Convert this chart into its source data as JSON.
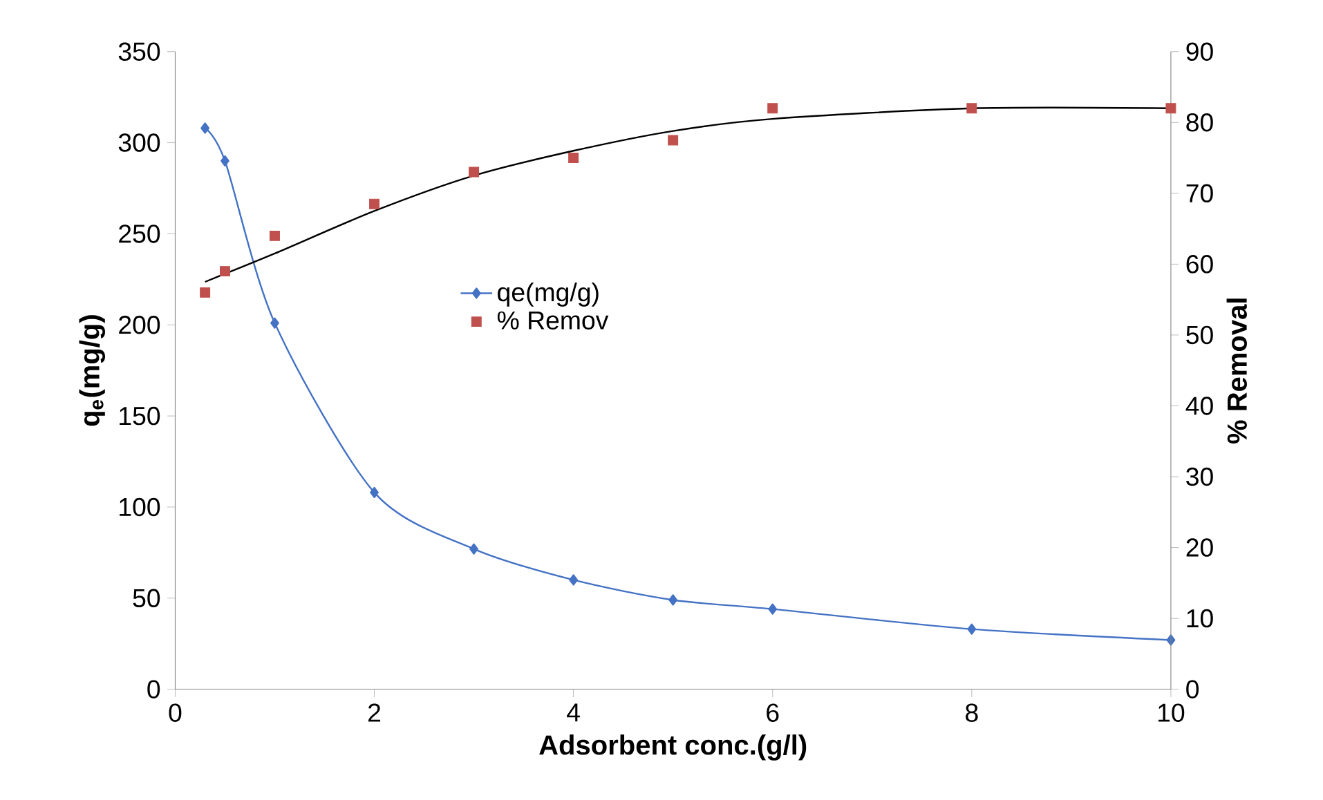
{
  "chart_data": {
    "type": "line",
    "xlabel": "Adsorbent conc.(g/l)",
    "ylabel": "q$_{e}$(mg/g)",
    "y2label": "% Removal",
    "xlim": [
      0,
      10
    ],
    "xticks": [
      0,
      2,
      4,
      6,
      8,
      10
    ],
    "ylim": [
      0,
      350
    ],
    "yticks": [
      0,
      50,
      100,
      150,
      200,
      250,
      300,
      350
    ],
    "y2lim": [
      0,
      90
    ],
    "y2ticks": [
      0,
      10,
      20,
      30,
      40,
      50,
      60,
      70,
      80,
      90
    ],
    "grid": false,
    "legend": "center",
    "series": [
      {
        "name": "qe(mg/g)",
        "marker": "diamond",
        "color": "#4472c4",
        "x": [
          0.3,
          0.5,
          1,
          2,
          3,
          4,
          5,
          6,
          8,
          10
        ],
        "values": [
          308,
          290,
          201,
          108,
          77,
          60,
          49,
          44,
          33,
          27
        ]
      },
      {
        "name": "% Remov",
        "type": "scatter",
        "marker": "square",
        "color": "#c0504d",
        "axis": "y2",
        "x": [
          0.3,
          0.5,
          1,
          2,
          3,
          4,
          5,
          6,
          8,
          10
        ],
        "values": [
          56,
          59,
          64,
          68.5,
          73,
          75,
          77.5,
          82,
          82,
          82
        ]
      },
      {
        "marker": "none",
        "color": "#000000",
        "axis": "y2",
        "x": [
          0.3,
          1,
          2,
          3,
          4,
          5,
          6,
          8,
          10
        ],
        "values": [
          57.5,
          61.5,
          67.5,
          72.5,
          76,
          78.8,
          80.5,
          82,
          82
        ]
      }
    ]
  }
}
